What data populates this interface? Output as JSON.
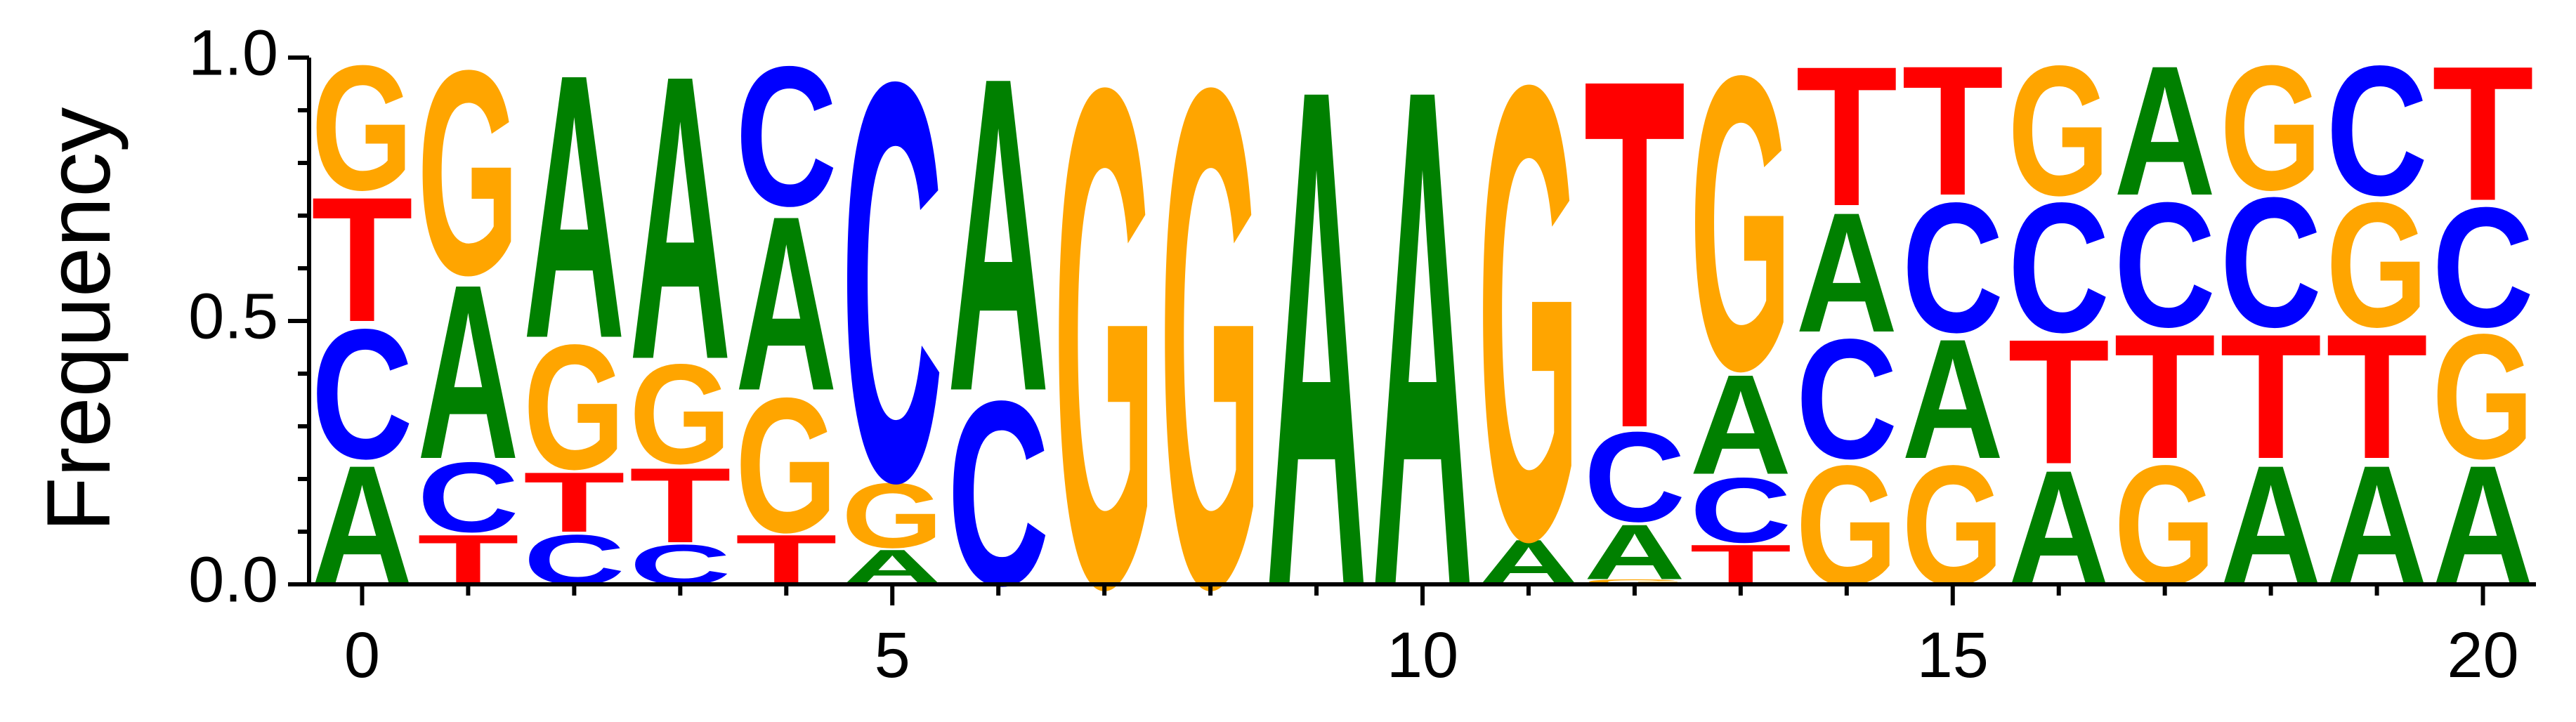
{
  "chart_data": {
    "type": "sequence-logo",
    "ylabel": "Frequency",
    "xlabel": "",
    "ylim": [
      0,
      1
    ],
    "xlim": [
      -0.5,
      20.5
    ],
    "y_ticks": [
      "0.0",
      "0.5",
      "1.0"
    ],
    "y_tick_values": [
      0,
      0.5,
      1
    ],
    "x_ticks": [
      "0",
      "5",
      "10",
      "15",
      "20"
    ],
    "x_tick_values": [
      0,
      5,
      10,
      15,
      20
    ],
    "grid": false,
    "colors": {
      "A": "#008000",
      "C": "#0000ff",
      "G": "#ffa500",
      "T": "#ff0000"
    },
    "positions": [
      {
        "pos": 0,
        "stack": [
          [
            "A",
            0.24
          ],
          [
            "C",
            0.26
          ],
          [
            "T",
            0.25
          ],
          [
            "G",
            0.25
          ]
        ]
      },
      {
        "pos": 1,
        "stack": [
          [
            "T",
            0.1
          ],
          [
            "C",
            0.14
          ],
          [
            "A",
            0.35
          ],
          [
            "G",
            0.41
          ]
        ]
      },
      {
        "pos": 2,
        "stack": [
          [
            "C",
            0.1
          ],
          [
            "T",
            0.12
          ],
          [
            "G",
            0.25
          ],
          [
            "A",
            0.53
          ]
        ]
      },
      {
        "pos": 3,
        "stack": [
          [
            "C",
            0.08
          ],
          [
            "T",
            0.15
          ],
          [
            "G",
            0.2
          ],
          [
            "A",
            0.57
          ]
        ]
      },
      {
        "pos": 4,
        "stack": [
          [
            "T",
            0.1
          ],
          [
            "G",
            0.27
          ],
          [
            "A",
            0.35
          ],
          [
            "C",
            0.28
          ]
        ]
      },
      {
        "pos": 5,
        "stack": [
          [
            "A",
            0.07
          ],
          [
            "G",
            0.13
          ],
          [
            "C",
            0.8
          ]
        ]
      },
      {
        "pos": 6,
        "stack": [
          [
            "C",
            0.37
          ],
          [
            "A",
            0.63
          ]
        ]
      },
      {
        "pos": 7,
        "stack": [
          [
            "G",
            1.0
          ]
        ]
      },
      {
        "pos": 8,
        "stack": [
          [
            "G",
            1.0
          ]
        ]
      },
      {
        "pos": 9,
        "stack": [
          [
            "A",
            1.0
          ]
        ]
      },
      {
        "pos": 10,
        "stack": [
          [
            "A",
            1.0
          ]
        ]
      },
      {
        "pos": 11,
        "stack": [
          [
            "A",
            0.09
          ],
          [
            "G",
            0.91
          ]
        ]
      },
      {
        "pos": 12,
        "stack": [
          [
            "G",
            0.01
          ],
          [
            "A",
            0.11
          ],
          [
            "C",
            0.18
          ],
          [
            "T",
            0.7
          ]
        ]
      },
      {
        "pos": 13,
        "stack": [
          [
            "T",
            0.08
          ],
          [
            "C",
            0.13
          ],
          [
            "A",
            0.2
          ],
          [
            "G",
            0.59
          ]
        ]
      },
      {
        "pos": 14,
        "stack": [
          [
            "G",
            0.24
          ],
          [
            "C",
            0.24
          ],
          [
            "A",
            0.24
          ],
          [
            "T",
            0.28
          ]
        ]
      },
      {
        "pos": 15,
        "stack": [
          [
            "G",
            0.24
          ],
          [
            "A",
            0.24
          ],
          [
            "C",
            0.26
          ],
          [
            "T",
            0.26
          ]
        ]
      },
      {
        "pos": 16,
        "stack": [
          [
            "A",
            0.23
          ],
          [
            "T",
            0.25
          ],
          [
            "C",
            0.26
          ],
          [
            "G",
            0.26
          ]
        ]
      },
      {
        "pos": 17,
        "stack": [
          [
            "G",
            0.24
          ],
          [
            "T",
            0.25
          ],
          [
            "C",
            0.25
          ],
          [
            "A",
            0.26
          ]
        ]
      },
      {
        "pos": 18,
        "stack": [
          [
            "A",
            0.24
          ],
          [
            "T",
            0.25
          ],
          [
            "C",
            0.26
          ],
          [
            "G",
            0.25
          ]
        ]
      },
      {
        "pos": 19,
        "stack": [
          [
            "A",
            0.24
          ],
          [
            "T",
            0.25
          ],
          [
            "G",
            0.25
          ],
          [
            "C",
            0.26
          ]
        ]
      },
      {
        "pos": 20,
        "stack": [
          [
            "A",
            0.24
          ],
          [
            "G",
            0.25
          ],
          [
            "C",
            0.24
          ],
          [
            "T",
            0.27
          ]
        ]
      }
    ]
  }
}
